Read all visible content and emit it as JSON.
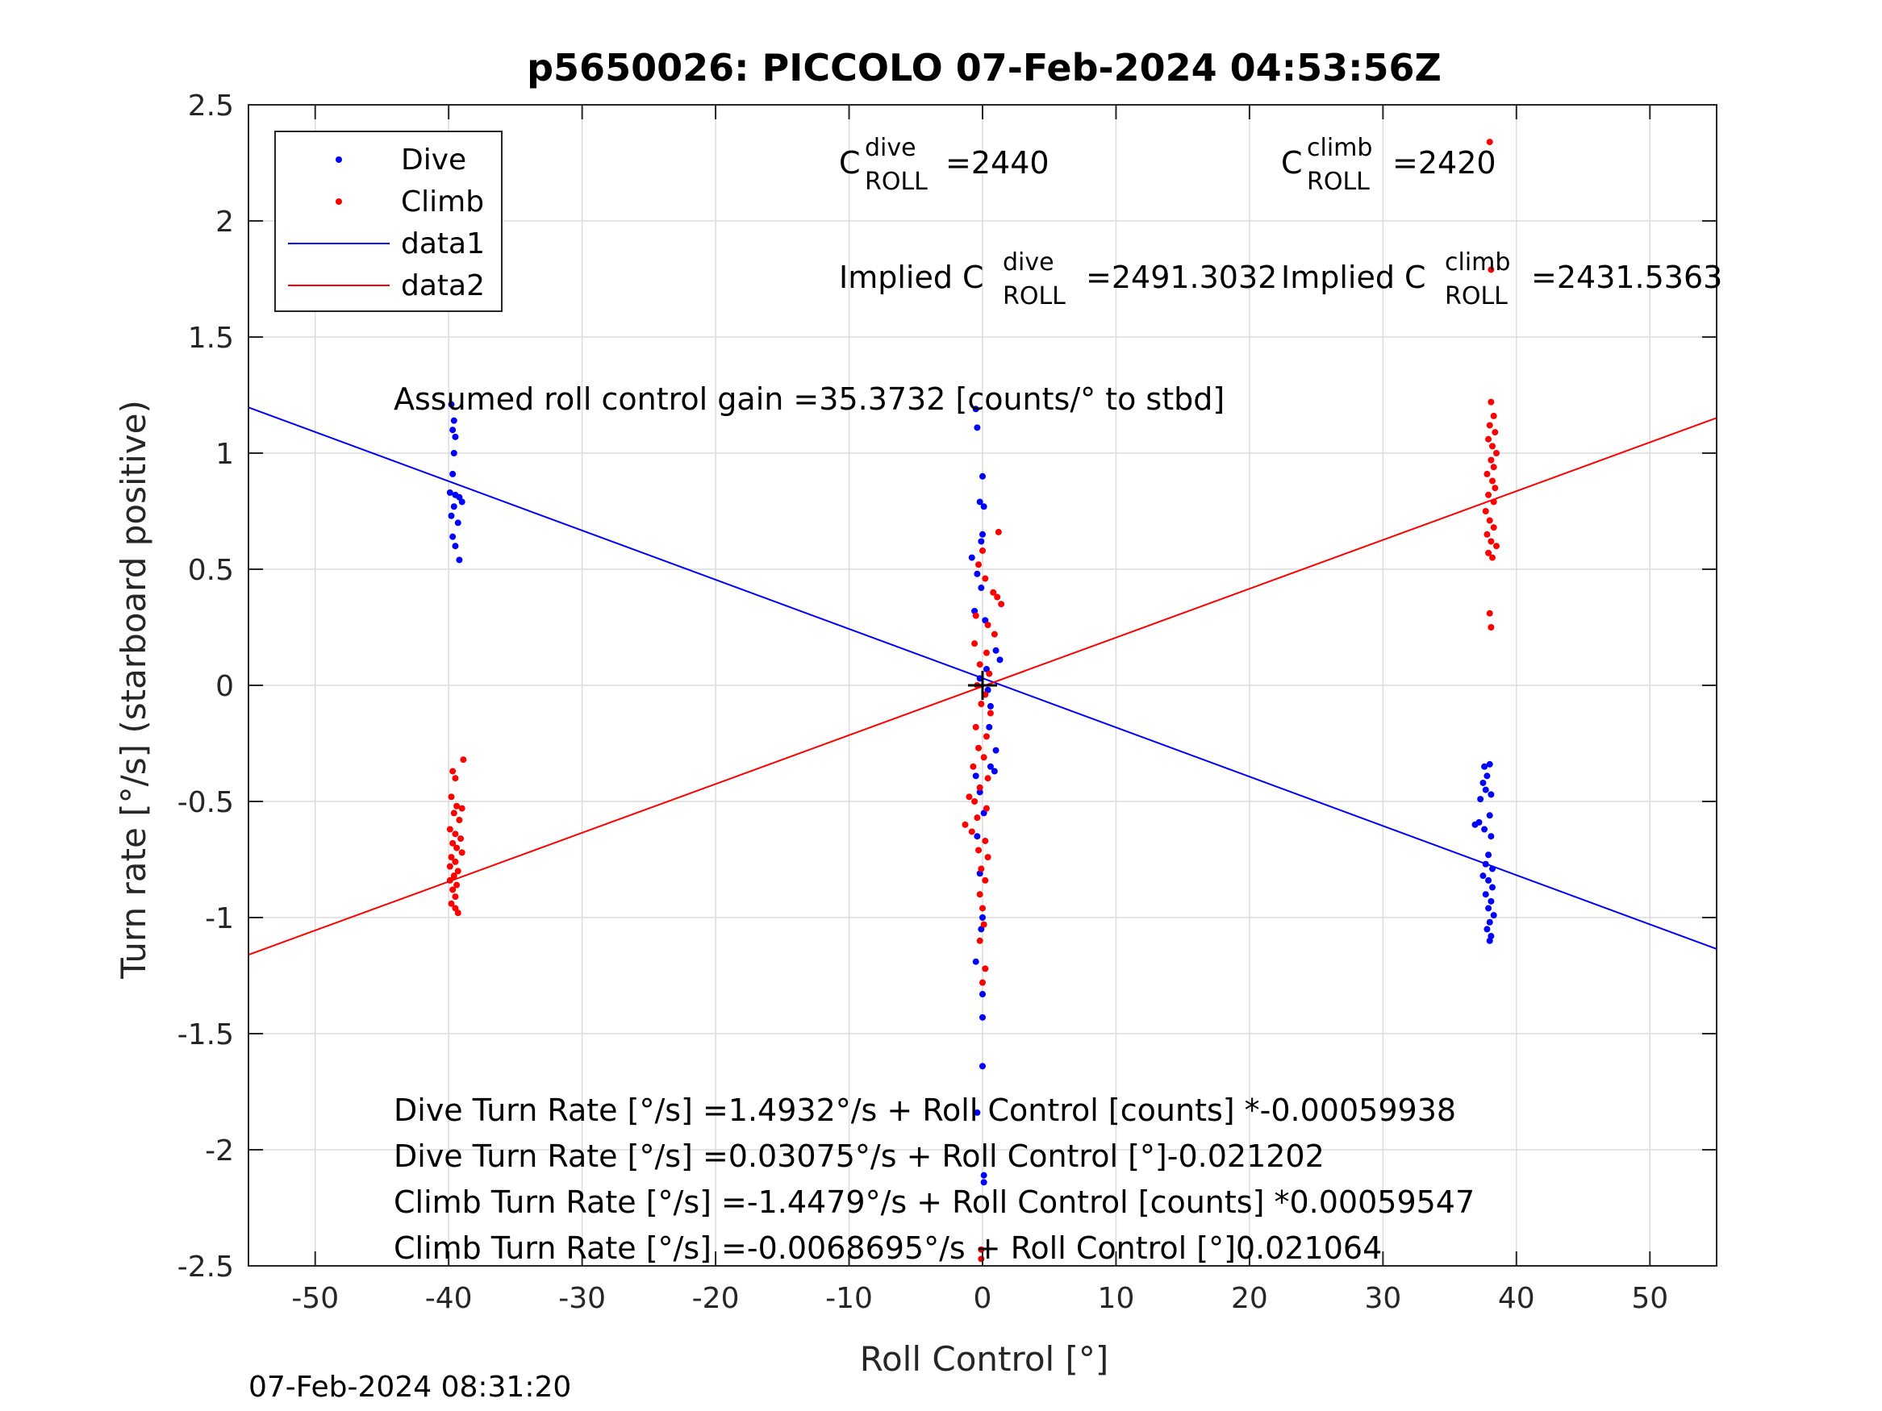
{
  "chart_data": {
    "type": "scatter",
    "title": "p5650026: PICCOLO 07-Feb-2024 04:53:56Z",
    "xlabel": "Roll Control [°]",
    "ylabel": "Turn rate [°/s] (starboard positive)",
    "xlim": [
      -55,
      55
    ],
    "ylim": [
      -2.5,
      2.5
    ],
    "xticks": [
      -50,
      -40,
      -30,
      -20,
      -10,
      0,
      10,
      20,
      30,
      40,
      50
    ],
    "xtick_labels": [
      "-50",
      "-40",
      "-30",
      "-20",
      "-10",
      "0",
      "10",
      "20",
      "30",
      "40",
      "50"
    ],
    "yticks": [
      -2.5,
      -2,
      -1.5,
      -1,
      -0.5,
      0,
      0.5,
      1,
      1.5,
      2,
      2.5
    ],
    "ytick_labels": [
      "-2.5",
      "-2",
      "-1.5",
      "-1",
      "-0.5",
      "0",
      "0.5",
      "1",
      "1.5",
      "2",
      "2.5"
    ],
    "grid": true,
    "legend_position": "top-left",
    "legend": [
      "Dive",
      "Climb",
      "data1",
      "data2"
    ],
    "colors": {
      "dive": "#0000ff",
      "climb": "#ff0000",
      "marker": "#000000"
    },
    "series": [
      {
        "name": "Dive",
        "kind": "points",
        "color": "#0000ff",
        "points": [
          [
            -39.8,
            1.21
          ],
          [
            -39.6,
            1.14
          ],
          [
            -39.7,
            1.1
          ],
          [
            -39.5,
            1.07
          ],
          [
            -39.6,
            1.0
          ],
          [
            -39.7,
            0.91
          ],
          [
            -39.9,
            0.83
          ],
          [
            -39.5,
            0.82
          ],
          [
            -39.2,
            0.81
          ],
          [
            -39.0,
            0.79
          ],
          [
            -39.6,
            0.77
          ],
          [
            -39.8,
            0.73
          ],
          [
            -39.3,
            0.7
          ],
          [
            -39.7,
            0.64
          ],
          [
            -39.5,
            0.6
          ],
          [
            -39.2,
            0.54
          ],
          [
            -0.5,
            1.19
          ],
          [
            -0.4,
            1.11
          ],
          [
            0.0,
            0.9
          ],
          [
            -0.2,
            0.79
          ],
          [
            0.1,
            0.77
          ],
          [
            0.0,
            0.65
          ],
          [
            -0.1,
            0.62
          ],
          [
            -0.8,
            0.55
          ],
          [
            -0.4,
            0.48
          ],
          [
            -0.1,
            0.42
          ],
          [
            -0.6,
            0.32
          ],
          [
            0.2,
            0.28
          ],
          [
            1.0,
            0.15
          ],
          [
            1.3,
            0.11
          ],
          [
            0.3,
            0.07
          ],
          [
            -0.2,
            0.03
          ],
          [
            0.4,
            -0.02
          ],
          [
            0.6,
            -0.09
          ],
          [
            0.5,
            -0.18
          ],
          [
            1.0,
            -0.28
          ],
          [
            0.6,
            -0.35
          ],
          [
            0.9,
            -0.37
          ],
          [
            -0.5,
            -0.39
          ],
          [
            -0.2,
            -0.46
          ],
          [
            0.1,
            -0.55
          ],
          [
            -0.4,
            -0.65
          ],
          [
            -0.2,
            -0.81
          ],
          [
            0.0,
            -1.0
          ],
          [
            -0.1,
            -1.05
          ],
          [
            -0.5,
            -1.19
          ],
          [
            0.0,
            -1.33
          ],
          [
            0.0,
            -1.43
          ],
          [
            0.0,
            -1.64
          ],
          [
            -0.4,
            -1.84
          ],
          [
            0.1,
            -2.11
          ],
          [
            0.1,
            -2.14
          ],
          [
            37.6,
            -0.35
          ],
          [
            38.0,
            -0.34
          ],
          [
            37.8,
            -0.39
          ],
          [
            37.5,
            -0.42
          ],
          [
            37.7,
            -0.45
          ],
          [
            38.1,
            -0.47
          ],
          [
            37.3,
            -0.49
          ],
          [
            38.0,
            -0.56
          ],
          [
            37.2,
            -0.59
          ],
          [
            36.9,
            -0.6
          ],
          [
            37.6,
            -0.62
          ],
          [
            38.1,
            -0.65
          ],
          [
            37.9,
            -0.73
          ],
          [
            37.7,
            -0.77
          ],
          [
            38.2,
            -0.79
          ],
          [
            37.5,
            -0.82
          ],
          [
            37.9,
            -0.84
          ],
          [
            38.2,
            -0.87
          ],
          [
            37.7,
            -0.9
          ],
          [
            38.1,
            -0.93
          ],
          [
            37.9,
            -0.96
          ],
          [
            38.3,
            -0.99
          ],
          [
            38.0,
            -1.02
          ],
          [
            37.8,
            -1.05
          ],
          [
            38.1,
            -1.08
          ],
          [
            38.0,
            -1.1
          ]
        ]
      },
      {
        "name": "Climb",
        "kind": "points",
        "color": "#ff0000",
        "points": [
          [
            -38.9,
            -0.32
          ],
          [
            -39.7,
            -0.37
          ],
          [
            -39.5,
            -0.4
          ],
          [
            -39.8,
            -0.48
          ],
          [
            -39.4,
            -0.52
          ],
          [
            -39.0,
            -0.53
          ],
          [
            -39.6,
            -0.55
          ],
          [
            -39.2,
            -0.58
          ],
          [
            -39.9,
            -0.62
          ],
          [
            -39.5,
            -0.64
          ],
          [
            -39.1,
            -0.66
          ],
          [
            -39.7,
            -0.68
          ],
          [
            -39.4,
            -0.7
          ],
          [
            -39.0,
            -0.72
          ],
          [
            -39.8,
            -0.74
          ],
          [
            -39.5,
            -0.76
          ],
          [
            -39.9,
            -0.78
          ],
          [
            -39.3,
            -0.8
          ],
          [
            -39.6,
            -0.82
          ],
          [
            -39.9,
            -0.84
          ],
          [
            -39.4,
            -0.86
          ],
          [
            -39.7,
            -0.88
          ],
          [
            -39.5,
            -0.91
          ],
          [
            -39.8,
            -0.94
          ],
          [
            -39.5,
            -0.96
          ],
          [
            -39.3,
            -0.98
          ],
          [
            1.2,
            0.66
          ],
          [
            0.0,
            0.58
          ],
          [
            -0.3,
            0.52
          ],
          [
            0.2,
            0.46
          ],
          [
            0.8,
            0.4
          ],
          [
            1.1,
            0.38
          ],
          [
            1.4,
            0.35
          ],
          [
            -0.5,
            0.3
          ],
          [
            0.4,
            0.26
          ],
          [
            0.9,
            0.22
          ],
          [
            -0.6,
            0.18
          ],
          [
            0.3,
            0.14
          ],
          [
            -0.2,
            0.09
          ],
          [
            0.5,
            0.05
          ],
          [
            -0.4,
            0.0
          ],
          [
            0.2,
            -0.04
          ],
          [
            -0.1,
            -0.08
          ],
          [
            0.6,
            -0.12
          ],
          [
            -0.5,
            -0.18
          ],
          [
            0.3,
            -0.22
          ],
          [
            -0.3,
            -0.27
          ],
          [
            0.1,
            -0.31
          ],
          [
            -0.7,
            -0.35
          ],
          [
            0.4,
            -0.4
          ],
          [
            -0.2,
            -0.44
          ],
          [
            -1.0,
            -0.48
          ],
          [
            -0.6,
            -0.5
          ],
          [
            0.3,
            -0.53
          ],
          [
            -0.4,
            -0.57
          ],
          [
            -1.3,
            -0.6
          ],
          [
            -0.8,
            -0.63
          ],
          [
            0.2,
            -0.67
          ],
          [
            -0.3,
            -0.71
          ],
          [
            0.4,
            -0.74
          ],
          [
            -0.1,
            -0.79
          ],
          [
            0.2,
            -0.84
          ],
          [
            -0.2,
            -0.9
          ],
          [
            0.0,
            -0.96
          ],
          [
            0.1,
            -1.03
          ],
          [
            -0.2,
            -1.1
          ],
          [
            0.2,
            -1.22
          ],
          [
            0.0,
            -1.28
          ],
          [
            -0.1,
            -2.43
          ],
          [
            -0.1,
            -2.47
          ],
          [
            38.0,
            2.34
          ],
          [
            38.1,
            1.79
          ],
          [
            38.1,
            1.22
          ],
          [
            38.3,
            1.16
          ],
          [
            38.0,
            1.12
          ],
          [
            38.4,
            1.09
          ],
          [
            37.9,
            1.06
          ],
          [
            38.2,
            1.03
          ],
          [
            38.5,
            1.0
          ],
          [
            38.1,
            0.97
          ],
          [
            38.3,
            0.94
          ],
          [
            37.8,
            0.91
          ],
          [
            38.2,
            0.88
          ],
          [
            38.4,
            0.85
          ],
          [
            37.9,
            0.82
          ],
          [
            38.3,
            0.79
          ],
          [
            37.7,
            0.75
          ],
          [
            38.0,
            0.71
          ],
          [
            38.3,
            0.68
          ],
          [
            37.8,
            0.65
          ],
          [
            38.1,
            0.62
          ],
          [
            38.5,
            0.6
          ],
          [
            37.9,
            0.57
          ],
          [
            38.2,
            0.55
          ],
          [
            38.0,
            0.31
          ],
          [
            38.1,
            0.25
          ]
        ]
      },
      {
        "name": "data1",
        "kind": "line",
        "color": "#0000ff",
        "x": [
          -55,
          55
        ],
        "y": [
          1.1969,
          -1.1354
        ]
      },
      {
        "name": "data2",
        "kind": "line",
        "color": "#ff0000",
        "x": [
          -55,
          55
        ],
        "y": [
          -1.1604,
          1.1516
        ]
      }
    ],
    "center_marker": {
      "x": 0,
      "y": 0
    }
  },
  "annotations": {
    "c_dive_base": "C",
    "c_dive_sup": "dive",
    "c_dive_sub": "ROLL",
    "c_dive_value": "=2440",
    "c_climb_base": "C",
    "c_climb_sup": "climb",
    "c_climb_sub": "ROLL",
    "c_climb_value": "=2420",
    "implied_dive_prefix": "Implied C",
    "implied_dive_sup": "dive",
    "implied_dive_sub": "ROLL",
    "implied_dive_value": "=2491.3032",
    "implied_climb_prefix": "Implied C",
    "implied_climb_sup": "climb",
    "implied_climb_sub": "ROLL",
    "implied_climb_value": "=2431.5363",
    "gain": "Assumed roll control gain =35.3732 [counts/° to stbd]",
    "fit_lines": [
      "Dive Turn Rate [°/s] =1.4932°/s + Roll Control [counts] *-0.00059938",
      "Dive Turn Rate [°/s] =0.03075°/s + Roll Control [°]-0.021202",
      "Climb Turn Rate [°/s] =-1.4479°/s + Roll Control [counts] *0.00059547",
      "Climb Turn Rate [°/s] =-0.0068695°/s + Roll Control [°]0.021064"
    ]
  },
  "timestamp": "07-Feb-2024 08:31:20"
}
